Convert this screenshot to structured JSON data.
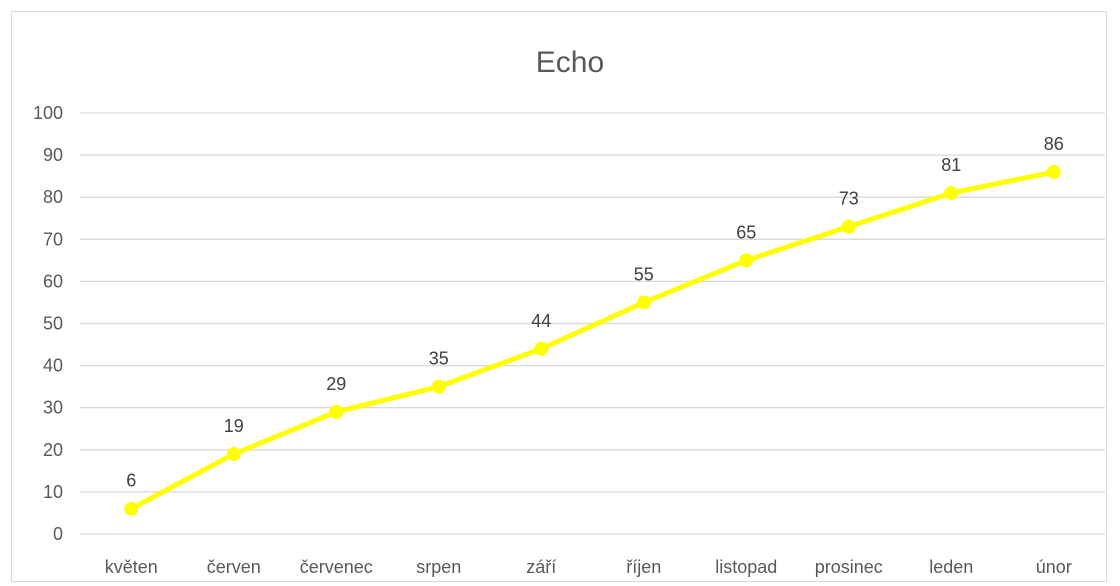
{
  "chart_data": {
    "type": "line",
    "title": "Echo",
    "xlabel": "",
    "ylabel": "",
    "categories": [
      "květen",
      "červen",
      "červenec",
      "srpen",
      "září",
      "říjen",
      "listopad",
      "prosinec",
      "leden",
      "únor"
    ],
    "series": [
      {
        "values": [
          6,
          19,
          29,
          35,
          44,
          55,
          65,
          73,
          81,
          86
        ],
        "color": "#ffff00"
      }
    ],
    "ylim": [
      0,
      100
    ],
    "yticks": [
      0,
      10,
      20,
      30,
      40,
      50,
      60,
      70,
      80,
      90,
      100
    ],
    "grid": true,
    "data_labels": true,
    "legend": "none"
  }
}
